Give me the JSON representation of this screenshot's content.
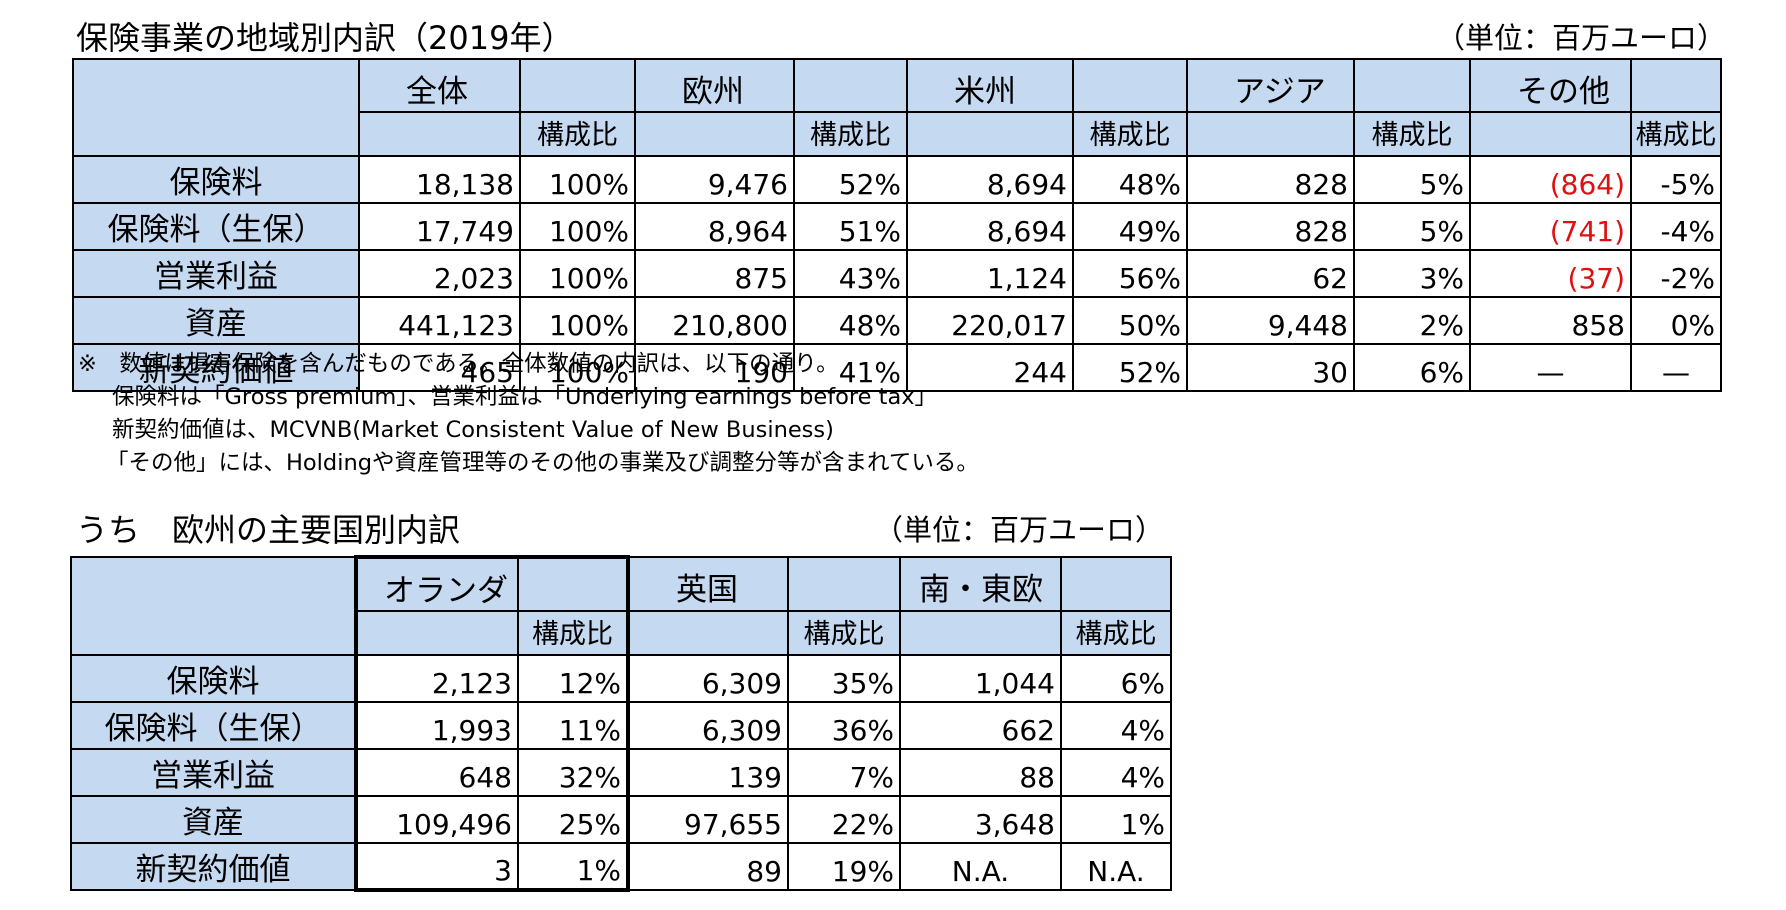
{
  "table1": {
    "title": "保険事業の地域別内訳（2019年）",
    "unit": "（単位：百万ユーロ）",
    "regions": [
      "全体",
      "欧州",
      "米州",
      "アジア",
      "その他"
    ],
    "share_label": "構成比",
    "rows": [
      {
        "label": "保険料",
        "cells": [
          "18,138",
          "100%",
          "9,476",
          "52%",
          "8,694",
          "48%",
          "828",
          "5%",
          "(864)",
          "-5%"
        ]
      },
      {
        "label": "保険料（生保）",
        "cells": [
          "17,749",
          "100%",
          "8,964",
          "51%",
          "8,694",
          "49%",
          "828",
          "5%",
          "(741)",
          "-4%"
        ]
      },
      {
        "label": "営業利益",
        "cells": [
          "2,023",
          "100%",
          "875",
          "43%",
          "1,124",
          "56%",
          "62",
          "3%",
          "(37)",
          "-2%"
        ]
      },
      {
        "label": "資産",
        "cells": [
          "441,123",
          "100%",
          "210,800",
          "48%",
          "220,017",
          "50%",
          "9,448",
          "2%",
          "858",
          "0%"
        ]
      },
      {
        "label": "新契約価値",
        "cells": [
          "465",
          "100%",
          "190",
          "41%",
          "244",
          "52%",
          "30",
          "6%",
          "—",
          "—"
        ]
      }
    ]
  },
  "notes": [
    "※　数値は損害保険を含んだものである。全体数値の内訳は、以下の通り。",
    "保険料は「Gross premium」、営業利益は「Underlying earnings before tax」",
    "新契約価値は、MCVNB(Market Consistent Value of New Business)",
    "「その他」には、Holdingや資産管理等のその他の事業及び調整分等が含まれている。"
  ],
  "table2": {
    "title": "うち　欧州の主要国別内訳",
    "unit": "（単位：百万ユーロ）",
    "regions": [
      "オランダ",
      "英国",
      "南・東欧"
    ],
    "share_label": "構成比",
    "rows": [
      {
        "label": "保険料",
        "cells": [
          "2,123",
          "12%",
          "6,309",
          "35%",
          "1,044",
          "6%"
        ]
      },
      {
        "label": "保険料（生保）",
        "cells": [
          "1,993",
          "11%",
          "6,309",
          "36%",
          "662",
          "4%"
        ]
      },
      {
        "label": "営業利益",
        "cells": [
          "648",
          "32%",
          "139",
          "7%",
          "88",
          "4%"
        ]
      },
      {
        "label": "資産",
        "cells": [
          "109,496",
          "25%",
          "97,655",
          "22%",
          "3,648",
          "1%"
        ]
      },
      {
        "label": "新契約価値",
        "cells": [
          "3",
          "1%",
          "89",
          "19%",
          "N.A.",
          "N.A."
        ]
      }
    ]
  },
  "colors": {
    "header_fill": "#c5d9f1",
    "negative_text": "#e01010",
    "border": "#000000"
  }
}
